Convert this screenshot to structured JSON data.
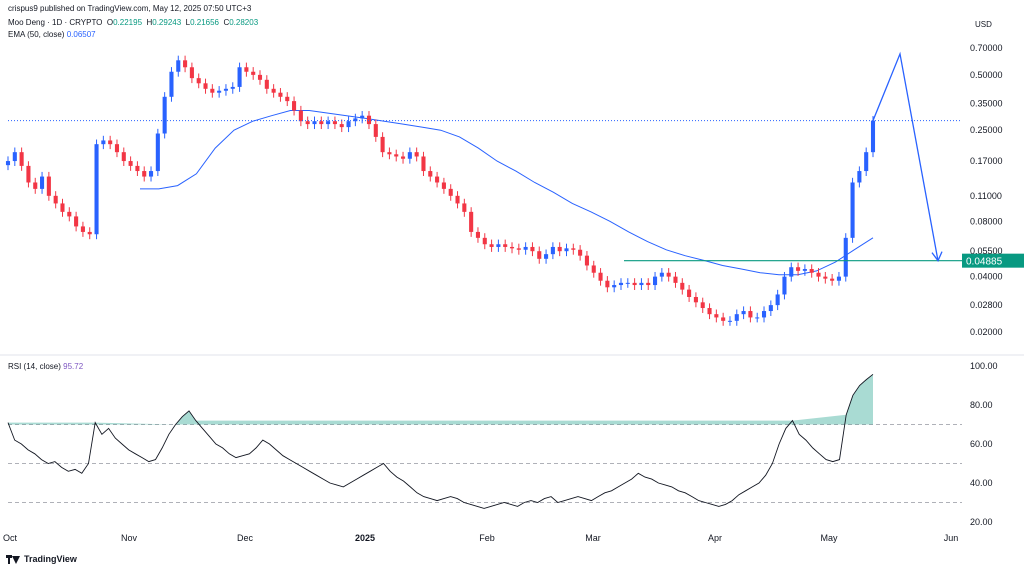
{
  "header": {
    "published": "crispus9 published on TradingView.com, May 12, 2025 07:50 UTC+3",
    "symbol": "Moo Deng · 1D · CRYPTO",
    "o_label": "O",
    "o_value": "0.22195",
    "h_label": "H",
    "h_value": "0.29243",
    "l_label": "L",
    "l_value": "0.21656",
    "c_label": "C",
    "c_value": "0.28203",
    "ema_label": "EMA (50, close)",
    "ema_value": "0.06507"
  },
  "currency": "USD",
  "rsi_header": {
    "label": "RSI (14, close)",
    "value": "95.72"
  },
  "footer": {
    "brand": "TradingView"
  },
  "colors": {
    "up": "#2962ff",
    "down": "#f23645",
    "ema": "#2962ff",
    "rsi": "#131722",
    "support": "#089981",
    "current_price_line": "#2962ff"
  },
  "chart_data": [
    {
      "type": "candlestick",
      "title": "Moo Deng · 1D · CRYPTO",
      "y_scale": "log",
      "y_ticks": [
        "0.70000",
        "0.50000",
        "0.35000",
        "0.25000",
        "0.17000",
        "0.11000",
        "0.08000",
        "0.05500",
        "0.04000",
        "0.02800",
        "0.02000"
      ],
      "x_ticks": [
        "Oct",
        "Nov",
        "Dec",
        "2025",
        "Feb",
        "Mar",
        "Apr",
        "May",
        "Jun"
      ],
      "price_path": [
        0.17,
        0.19,
        0.16,
        0.13,
        0.12,
        0.14,
        0.11,
        0.1,
        0.09,
        0.085,
        0.075,
        0.07,
        0.068,
        0.21,
        0.22,
        0.21,
        0.19,
        0.17,
        0.16,
        0.15,
        0.14,
        0.15,
        0.24,
        0.38,
        0.52,
        0.6,
        0.55,
        0.48,
        0.45,
        0.42,
        0.4,
        0.41,
        0.42,
        0.43,
        0.55,
        0.52,
        0.5,
        0.47,
        0.42,
        0.4,
        0.38,
        0.36,
        0.32,
        0.28,
        0.27,
        0.28,
        0.27,
        0.28,
        0.27,
        0.26,
        0.28,
        0.29,
        0.3,
        0.27,
        0.23,
        0.19,
        0.185,
        0.18,
        0.175,
        0.19,
        0.18,
        0.15,
        0.14,
        0.13,
        0.12,
        0.11,
        0.1,
        0.09,
        0.07,
        0.065,
        0.06,
        0.058,
        0.06,
        0.058,
        0.057,
        0.056,
        0.058,
        0.055,
        0.05,
        0.053,
        0.058,
        0.055,
        0.057,
        0.056,
        0.052,
        0.046,
        0.042,
        0.038,
        0.035,
        0.036,
        0.037,
        0.037,
        0.036,
        0.037,
        0.036,
        0.04,
        0.042,
        0.04,
        0.037,
        0.034,
        0.031,
        0.029,
        0.027,
        0.025,
        0.024,
        0.023,
        0.023,
        0.025,
        0.026,
        0.024,
        0.024,
        0.026,
        0.028,
        0.032,
        0.04,
        0.045,
        0.043,
        0.044,
        0.042,
        0.04,
        0.039,
        0.038,
        0.04,
        0.065,
        0.13,
        0.15,
        0.19,
        0.28203
      ],
      "ema50_path": [
        0.12,
        0.12,
        0.125,
        0.145,
        0.2,
        0.25,
        0.28,
        0.3,
        0.32,
        0.32,
        0.31,
        0.3,
        0.29,
        0.28,
        0.27,
        0.26,
        0.25,
        0.23,
        0.2,
        0.17,
        0.15,
        0.13,
        0.115,
        0.1,
        0.09,
        0.08,
        0.07,
        0.062,
        0.056,
        0.052,
        0.049,
        0.046,
        0.044,
        0.042,
        0.041,
        0.041,
        0.043,
        0.048,
        0.056,
        0.065
      ],
      "support_level": "0.04885",
      "current_price": "0.28203",
      "projection": [
        0.28203,
        0.65,
        0.04885
      ]
    },
    {
      "type": "line",
      "title": "RSI (14, close)",
      "y_ticks": [
        "100.00",
        "80.00",
        "60.00",
        "40.00",
        "20.00"
      ],
      "reference_levels": [
        70,
        50,
        30
      ],
      "values": [
        71,
        62,
        60,
        57,
        55,
        52,
        50,
        51,
        48,
        46,
        47,
        45,
        50,
        71,
        65,
        68,
        63,
        60,
        57,
        55,
        53,
        51,
        52,
        58,
        65,
        70,
        74,
        77,
        72,
        68,
        64,
        60,
        58,
        55,
        53,
        54,
        55,
        58,
        62,
        60,
        57,
        54,
        52,
        50,
        48,
        46,
        44,
        42,
        40,
        39,
        38,
        40,
        42,
        44,
        46,
        48,
        50,
        46,
        43,
        41,
        38,
        35,
        33,
        32,
        31,
        32,
        33,
        32,
        30,
        29,
        28,
        27,
        28,
        29,
        30,
        29,
        28,
        30,
        31,
        30,
        32,
        33,
        30,
        31,
        32,
        33,
        32,
        31,
        33,
        35,
        36,
        38,
        40,
        42,
        45,
        43,
        42,
        40,
        39,
        38,
        36,
        35,
        33,
        31,
        30,
        29,
        28,
        29,
        31,
        34,
        36,
        38,
        40,
        44,
        50,
        60,
        68,
        72,
        65,
        62,
        58,
        55,
        52,
        51,
        52,
        75,
        85,
        90,
        93,
        95.72
      ]
    }
  ]
}
